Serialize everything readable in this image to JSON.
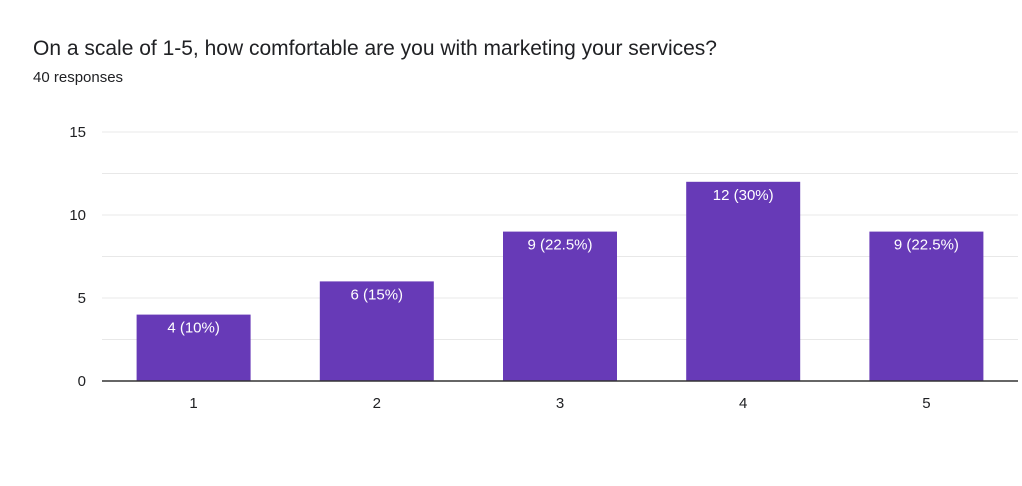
{
  "header": {
    "title": "On a scale of 1-5, how comfortable are you with marketing your services?",
    "responses": "40 responses"
  },
  "colors": {
    "bar": "#673ab7",
    "grid": "#e8e8e8",
    "axis": "#333333",
    "text": "#202124",
    "label": "#ffffff"
  },
  "chart_data": {
    "type": "bar",
    "categories": [
      "1",
      "2",
      "3",
      "4",
      "5"
    ],
    "values": [
      4,
      6,
      9,
      12,
      9
    ],
    "data_labels": [
      "4 (10%)",
      "6 (15%)",
      "9 (22.5%)",
      "12 (30%)",
      "9 (22.5%)"
    ],
    "title": "On a scale of 1-5, how comfortable are you with marketing your services?",
    "subtitle": "40 responses",
    "xlabel": "",
    "ylabel": "",
    "ylim": [
      0,
      15
    ],
    "yticks": [
      "0",
      "5",
      "10",
      "15"
    ],
    "grid": true,
    "legend": "none"
  }
}
